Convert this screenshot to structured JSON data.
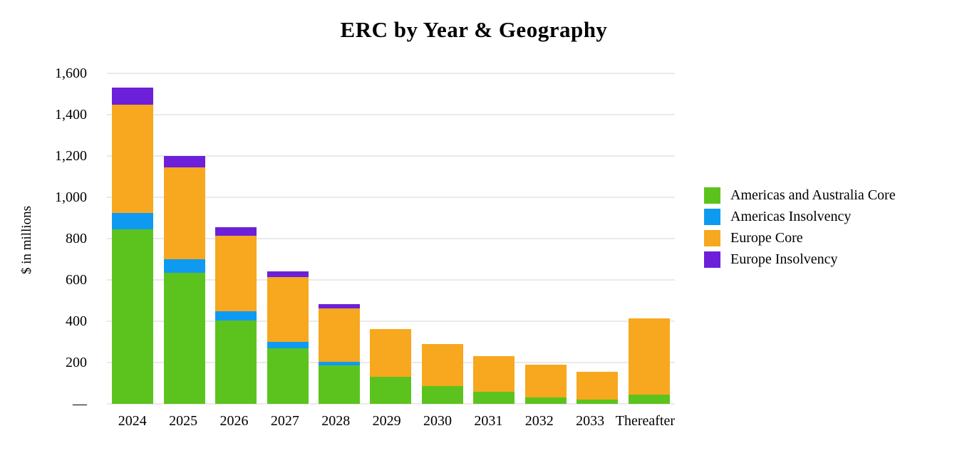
{
  "chart_data": {
    "type": "bar",
    "stacked": true,
    "title": "ERC by Year & Geography",
    "ylabel": "$ in millions",
    "ylim": [
      0,
      1600
    ],
    "ytick_step": 200,
    "ytick_labels": [
      "1,600",
      "1,400",
      "1,200",
      "1,000",
      "800",
      "600",
      "400",
      "200",
      "—"
    ],
    "grid": true,
    "grid_color": "#EAEAEA",
    "background": "#FFFFFF",
    "text_color": "#000000",
    "legend_position": "right",
    "categories": [
      "2024",
      "2025",
      "2026",
      "2027",
      "2028",
      "2029",
      "2030",
      "2031",
      "2032",
      "2033",
      "Thereafter"
    ],
    "series": [
      {
        "name": "Americas and Australia Core",
        "color": "#5CC31E",
        "values": [
          845,
          635,
          405,
          270,
          185,
          130,
          85,
          60,
          32,
          22,
          45
        ]
      },
      {
        "name": "Americas Insolvency",
        "color": "#0F9AF2",
        "values": [
          80,
          65,
          45,
          30,
          18,
          0,
          0,
          0,
          0,
          0,
          0
        ]
      },
      {
        "name": "Europe Core",
        "color": "#F7A81E",
        "values": [
          525,
          445,
          365,
          315,
          260,
          232,
          205,
          172,
          158,
          133,
          370
        ]
      },
      {
        "name": "Europe Insolvency",
        "color": "#6D20D9",
        "values": [
          80,
          55,
          40,
          25,
          20,
          0,
          0,
          0,
          0,
          0,
          0
        ]
      }
    ]
  }
}
